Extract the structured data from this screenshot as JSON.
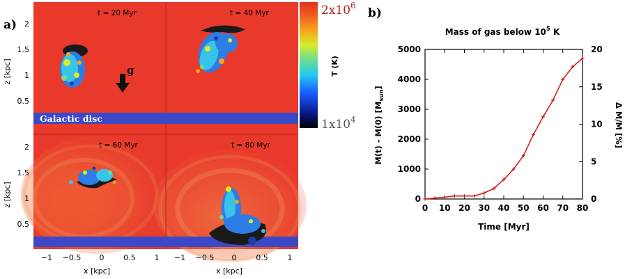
{
  "panel_a": {
    "label": "a)",
    "panels": [
      {
        "time": "t = 20 Myr"
      },
      {
        "time": "t = 40 Myr"
      },
      {
        "time": "t = 60 Myr"
      },
      {
        "time": "t = 80 Myr"
      }
    ],
    "gravity_label": "g",
    "disc_label": "Galactic disc",
    "y_label": "z [kpc]",
    "x_label": "x [kpc]",
    "y_ticks": [
      "2",
      "1.5",
      "1",
      "0.5"
    ],
    "x_ticks_left": [
      "−1",
      "−0.5",
      "0",
      "0.5",
      "1"
    ],
    "x_ticks_right": [
      "−1",
      "−0.5",
      "0",
      "0.5",
      "1"
    ],
    "colorbar": {
      "label": "T (K)",
      "max_label_base": "2x10",
      "max_label_exp": "6",
      "min_label_base": "1x10",
      "min_label_exp": "4",
      "max_color": "#b0201e",
      "min_color": "#555555"
    },
    "colors": {
      "background": "#e8392b",
      "disc": "#3b49c8",
      "cold": "#1a1a1a"
    }
  },
  "chart_data": {
    "type": "line",
    "label": "b)",
    "title_main": "Mass of gas below 10",
    "title_sup": "5",
    "title_unit": " K",
    "xlabel": "Time [Myr]",
    "ylabel_main": "M(t) - M(0) [M",
    "ylabel_sub": "sun",
    "ylabel_end": "]",
    "y2label": "Δ M/M [%]",
    "xlim": [
      0,
      80
    ],
    "ylim": [
      0,
      5000
    ],
    "y2lim": [
      0,
      20
    ],
    "xticks": [
      "0",
      "10",
      "20",
      "30",
      "40",
      "50",
      "60",
      "70",
      "80"
    ],
    "yticks": [
      "0",
      "1000",
      "2000",
      "3000",
      "4000",
      "5000"
    ],
    "y2ticks": [
      "0",
      "5",
      "10",
      "15",
      "20"
    ],
    "line_color": "#cc2222",
    "series": [
      {
        "name": "Mass of gas below 1e5 K",
        "x": [
          0,
          5,
          10,
          15,
          20,
          25,
          30,
          35,
          40,
          45,
          50,
          55,
          60,
          65,
          70,
          75,
          80
        ],
        "y": [
          0,
          30,
          60,
          100,
          100,
          100,
          200,
          350,
          650,
          1000,
          1450,
          2150,
          2750,
          3300,
          4000,
          4420,
          4700
        ]
      }
    ]
  }
}
